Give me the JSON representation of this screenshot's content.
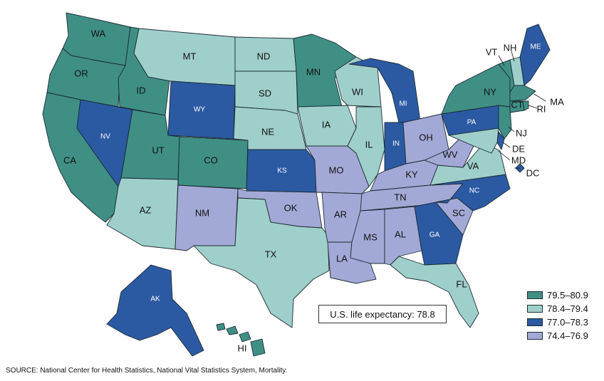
{
  "legend": {
    "items": [
      {
        "label": "79.5–80.9",
        "color": "#3f8f85"
      },
      {
        "label": "78.4–79.4",
        "color": "#9fcfca"
      },
      {
        "label": "77.0–78.3",
        "color": "#2b5aa3"
      },
      {
        "label": "74.4–76.9",
        "color": "#a3a9d6"
      }
    ]
  },
  "callout": "U.S. life expectancy: 78.8",
  "source": "SOURCE: National Center for Health Statistics, National Vital Statistics System, Mortality.",
  "labels": {
    "WA": "WA",
    "OR": "OR",
    "CA": "CA",
    "ID": "ID",
    "NV": "NV",
    "MT": "MT",
    "WY": "WY",
    "UT": "UT",
    "CO": "CO",
    "AZ": "AZ",
    "NM": "NM",
    "ND": "ND",
    "SD": "SD",
    "NE": "NE",
    "KS": "KS",
    "OK": "OK",
    "TX": "TX",
    "MN": "MN",
    "IA": "IA",
    "MO": "MO",
    "AR": "AR",
    "LA": "LA",
    "WI": "WI",
    "IL": "IL",
    "MI": "MI",
    "IN": "IN",
    "OH": "OH",
    "KY": "KY",
    "TN": "TN",
    "MS": "MS",
    "AL": "AL",
    "GA": "GA",
    "FL": "FL",
    "SC": "SC",
    "NC": "NC",
    "VA": "VA",
    "WV": "WV",
    "PA": "PA",
    "NY": "NY",
    "VT": "VT",
    "NH": "NH",
    "ME": "ME",
    "MA": "MA",
    "RI": "RI",
    "CT": "CT",
    "NJ": "NJ",
    "DE": "DE",
    "MD": "MD",
    "DC": "DC",
    "AK": "AK",
    "HI": "HI"
  }
}
